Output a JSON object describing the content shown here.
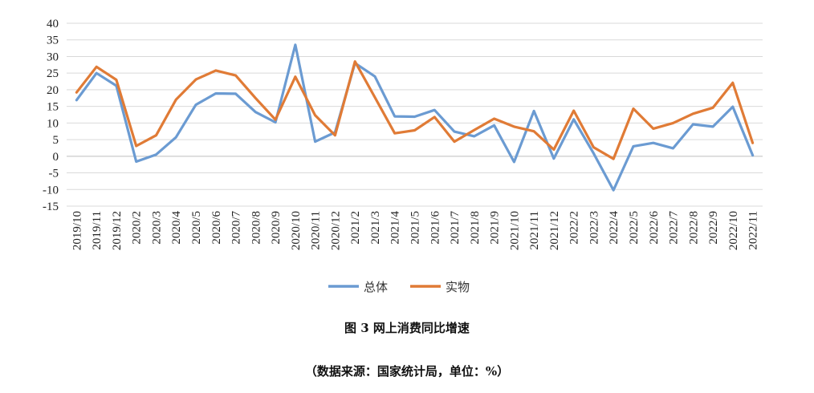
{
  "figure": {
    "title": "图 3  网上消费同比增速",
    "source": "（数据来源：国家统计局，单位：%）"
  },
  "chart_data": {
    "type": "line",
    "categories": [
      "2019/10",
      "2019/11",
      "2019/12",
      "2020/2",
      "2020/3",
      "2020/4",
      "2020/5",
      "2020/6",
      "2020/7",
      "2020/8",
      "2020/9",
      "2020/10",
      "2020/11",
      "2020/12",
      "2021/2",
      "2021/3",
      "2021/4",
      "2021/5",
      "2021/6",
      "2021/7",
      "2021/8",
      "2021/9",
      "2021/10",
      "2021/11",
      "2021/12",
      "2022/2",
      "2022/3",
      "2022/4",
      "2022/5",
      "2022/6",
      "2022/7",
      "2022/8",
      "2022/9",
      "2022/10",
      "2022/11"
    ],
    "series": [
      {
        "name": "总体",
        "color": "#6b9bd2",
        "values": [
          16.9,
          25,
          21.2,
          -1.6,
          0.5,
          5.7,
          15.5,
          18.9,
          18.8,
          13.3,
          10.2,
          33.5,
          4.4,
          7.2,
          28,
          24,
          12,
          11.9,
          13.9,
          7.4,
          6.0,
          9.3,
          -1.7,
          13.6,
          -0.7,
          11.1,
          0.9,
          -10.2,
          3,
          4,
          2.4,
          9.6,
          8.9,
          14.9,
          0.3
        ]
      },
      {
        "name": "实物",
        "color": "#e07b36",
        "values": [
          19.2,
          26.9,
          23,
          3.1,
          6.3,
          17,
          23.1,
          25.8,
          24.3,
          17.5,
          11,
          23.9,
          12.3,
          6.3,
          28.5,
          17.7,
          6.9,
          7.8,
          11.8,
          4.4,
          7.9,
          11.3,
          8.9,
          7.5,
          2,
          13.7,
          2.7,
          -0.8,
          14.3,
          8.3,
          10,
          12.8,
          14.6,
          22.1,
          4
        ]
      }
    ],
    "yticks": [
      40,
      35,
      30,
      25,
      20,
      15,
      10,
      5,
      0,
      -5,
      -10,
      -15
    ],
    "ylim": [
      -15,
      40
    ],
    "grid": true,
    "legend": "bottom-center"
  }
}
